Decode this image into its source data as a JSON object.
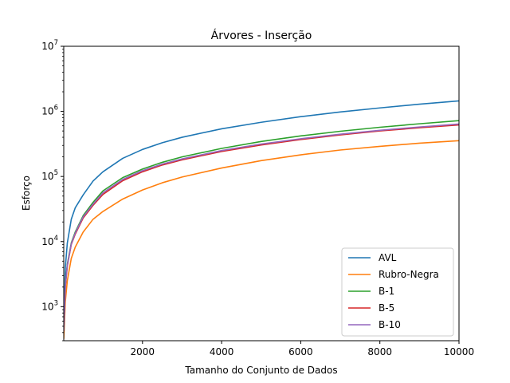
{
  "chart_data": {
    "type": "line",
    "title": "Árvores - Inserção",
    "xlabel": "Tamanho do Conjunto de Dados",
    "ylabel": "Esforço",
    "xlim": [
      10,
      10000
    ],
    "ylim": [
      300,
      10000000
    ],
    "yscale": "log",
    "grid": false,
    "legend_position": "lower-right",
    "x_ticks": [
      2000,
      4000,
      6000,
      8000,
      10000
    ],
    "x_tick_labels": [
      "2000",
      "4000",
      "6000",
      "8000",
      "10000"
    ],
    "y_ticks": [
      1000,
      10000,
      100000,
      1000000,
      10000000
    ],
    "y_tick_labels": [
      {
        "base": "10",
        "exp": "3"
      },
      {
        "base": "10",
        "exp": "4"
      },
      {
        "base": "10",
        "exp": "5"
      },
      {
        "base": "10",
        "exp": "6"
      },
      {
        "base": "10",
        "exp": "7"
      }
    ],
    "x": [
      10,
      50,
      100,
      200,
      300,
      500,
      750,
      1000,
      1500,
      2000,
      2500,
      3000,
      4000,
      5000,
      6000,
      7000,
      8000,
      9000,
      10000
    ],
    "series": [
      {
        "name": "AVL",
        "color": "#1f77b4",
        "values": [
          500,
          4000,
          9500,
          22000,
          33000,
          52000,
          85000,
          118000,
          190000,
          260000,
          330000,
          400000,
          540000,
          680000,
          830000,
          980000,
          1130000,
          1290000,
          1450000
        ]
      },
      {
        "name": "Rubro-Negra",
        "color": "#ff7f0e",
        "values": [
          320,
          1200,
          2500,
          5500,
          8200,
          14000,
          22000,
          29000,
          45000,
          62000,
          80000,
          98000,
          135000,
          175000,
          215000,
          255000,
          290000,
          325000,
          355000
        ]
      },
      {
        "name": "B-1",
        "color": "#2ca02c",
        "values": [
          450,
          2200,
          4500,
          9500,
          14000,
          25000,
          40000,
          60000,
          96000,
          130000,
          165000,
          200000,
          270000,
          345000,
          420000,
          495000,
          570000,
          645000,
          720000
        ]
      },
      {
        "name": "B-5",
        "color": "#d62728",
        "values": [
          420,
          2000,
          4200,
          9000,
          13000,
          23000,
          36000,
          53000,
          86000,
          118000,
          150000,
          180000,
          242000,
          305000,
          370000,
          435000,
          500000,
          560000,
          620000
        ]
      },
      {
        "name": "B-10",
        "color": "#9467bd",
        "values": [
          430,
          2100,
          4300,
          9200,
          13500,
          24000,
          37500,
          56000,
          90000,
          123000,
          155000,
          186000,
          250000,
          315000,
          380000,
          446000,
          512000,
          576000,
          640000
        ]
      }
    ]
  }
}
